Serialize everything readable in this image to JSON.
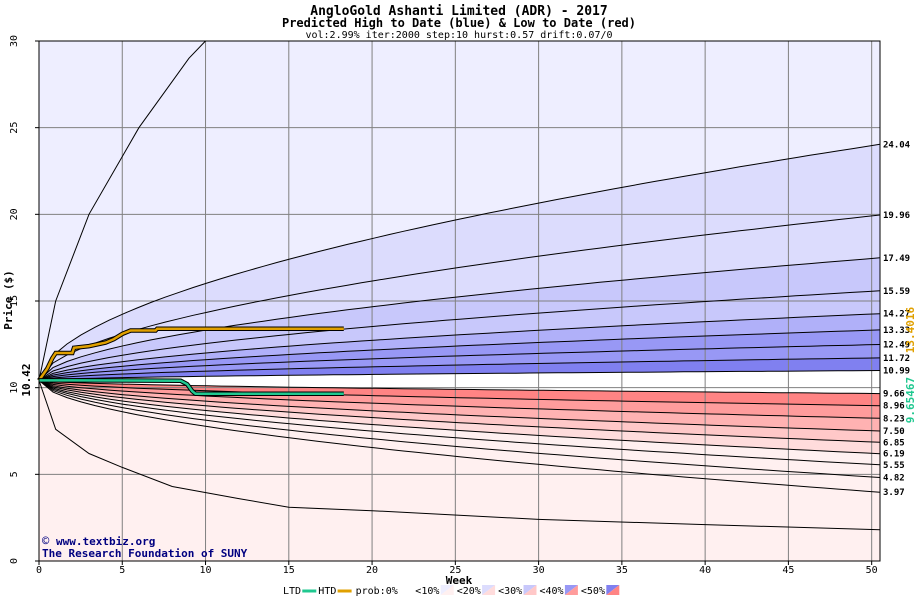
{
  "header": {
    "title": "AngloGold Ashanti Limited (ADR) - 2017",
    "subtitle": "Predicted High to Date (blue) &  Low to Date (red)",
    "params": "vol:2.99% iter:2000 step:10 hurst:0.57 drift:0.07/0"
  },
  "credits": {
    "site": "www.textbiz.org",
    "org": "The Research Foundation of SUNY"
  },
  "colors": {
    "background": "#ffffff",
    "htd_line": "#e0a000",
    "ltd_line": "#20c890",
    "blue_bands": [
      "#eeeeff",
      "#dcdcfd",
      "#c8c8fb",
      "#b0b0f9",
      "#9898f5",
      "#8080f0"
    ],
    "red_bands": [
      "#fff0f0",
      "#ffdcdc",
      "#ffc8c8",
      "#ffb2b2",
      "#ff9c9c",
      "#ff8484"
    ],
    "grid": "#808080",
    "contour": "#000000"
  },
  "chart_data": {
    "type": "area",
    "title": "AngloGold Ashanti Limited (ADR) - 2017",
    "xlabel": "Week",
    "ylabel": "Price ($)",
    "xlim": [
      0,
      50.5
    ],
    "ylim": [
      0,
      30
    ],
    "x_ticks": [
      0,
      5,
      10,
      15,
      20,
      25,
      30,
      35,
      40,
      45,
      50
    ],
    "y_ticks": [
      0,
      5,
      10,
      15,
      20,
      25,
      30
    ],
    "grid": true,
    "start_price": 10.42,
    "start_price_label": "10.42",
    "legend": {
      "placement": "bottom",
      "items": [
        "LTD",
        "HTD",
        "prob:0%",
        "<10%",
        "<20%",
        "<30%",
        "<40%",
        "<50%"
      ]
    },
    "upper_contours": [
      {
        "label": "24.04",
        "end": 24.04
      },
      {
        "label": "19.96",
        "end": 19.96
      },
      {
        "label": "17.49",
        "end": 17.49
      },
      {
        "label": "15.59",
        "end": 15.59
      },
      {
        "label": "14.27",
        "end": 14.27
      },
      {
        "label": "13.33",
        "end": 13.33
      },
      {
        "label": "12.49",
        "end": 12.49
      },
      {
        "label": "11.72",
        "end": 11.72
      },
      {
        "label": "10.99",
        "end": 10.99
      }
    ],
    "lower_contours": [
      {
        "label": "9.66",
        "end": 9.66
      },
      {
        "label": "8.96",
        "end": 8.96
      },
      {
        "label": "8.23",
        "end": 8.23
      },
      {
        "label": "7.50",
        "end": 7.5
      },
      {
        "label": "6.85",
        "end": 6.85
      },
      {
        "label": "6.19",
        "end": 6.19
      },
      {
        "label": "5.55",
        "end": 5.55
      },
      {
        "label": "4.82",
        "end": 4.82
      },
      {
        "label": "3.97",
        "end": 3.97
      }
    ],
    "outer_upper_envelope": [
      [
        0,
        10.42
      ],
      [
        1,
        15
      ],
      [
        3,
        20
      ],
      [
        6,
        25
      ],
      [
        9,
        29
      ],
      [
        10,
        30
      ]
    ],
    "outer_lower_envelope": [
      [
        0,
        10.42
      ],
      [
        1,
        7.6
      ],
      [
        3,
        6.2
      ],
      [
        5,
        5.4
      ],
      [
        8,
        4.3
      ],
      [
        12,
        3.6
      ],
      [
        15,
        3.1
      ],
      [
        20,
        2.9
      ],
      [
        30,
        2.4
      ],
      [
        40,
        2.1
      ],
      [
        50.5,
        1.8
      ]
    ],
    "htd_series": {
      "name": "HTD",
      "points": [
        [
          0,
          10.42
        ],
        [
          0.5,
          11.1
        ],
        [
          0.8,
          11.7
        ],
        [
          1.0,
          12.0
        ],
        [
          2.0,
          12.0
        ],
        [
          2.1,
          12.3
        ],
        [
          3.0,
          12.4
        ],
        [
          4.0,
          12.6
        ],
        [
          4.5,
          12.8
        ],
        [
          5.0,
          13.1
        ],
        [
          5.5,
          13.3
        ],
        [
          7.0,
          13.3
        ],
        [
          7.1,
          13.4
        ],
        [
          18.3,
          13.4
        ]
      ],
      "end_label": "13.4016"
    },
    "ltd_series": {
      "name": "LTD",
      "points": [
        [
          0,
          10.42
        ],
        [
          2,
          10.42
        ],
        [
          8.5,
          10.4
        ],
        [
          8.9,
          10.2
        ],
        [
          9.2,
          9.8
        ],
        [
          9.4,
          9.65
        ],
        [
          18.3,
          9.65
        ]
      ],
      "end_label": "9.65467"
    }
  }
}
